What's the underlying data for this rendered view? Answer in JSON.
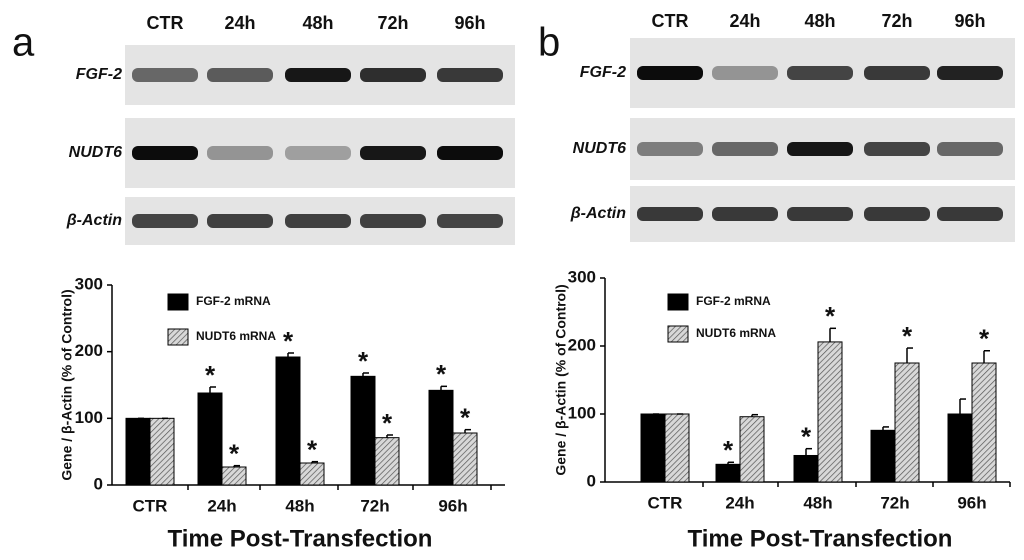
{
  "chart_data": [
    {
      "type": "bar",
      "panel": "a",
      "gel": {
        "lanes": [
          "CTR",
          "24h",
          "48h",
          "72h",
          "96h"
        ],
        "rows": [
          "FGF-2",
          "NUDT6",
          "β-Actin"
        ]
      },
      "categories": [
        "CTR",
        "24h",
        "48h",
        "72h",
        "96h"
      ],
      "series": [
        {
          "name": "FGF-2 mRNA",
          "color": "#000000",
          "values": [
            100,
            138,
            192,
            163,
            142
          ],
          "errors": [
            0,
            9,
            6,
            5,
            6
          ],
          "significance": [
            null,
            "*",
            "*",
            "*",
            "*"
          ]
        },
        {
          "name": "NUDT6 mRNA",
          "color": "#9a9a9a",
          "pattern": "hatch",
          "values": [
            100,
            27,
            33,
            71,
            78
          ],
          "errors": [
            0,
            2,
            2,
            4,
            5
          ],
          "significance": [
            null,
            "*",
            "*",
            "*",
            "*"
          ]
        }
      ],
      "y_label": "Gene / β-Actin (% of Control)",
      "x_label": "Time Post-Transfection",
      "ylim": [
        0,
        300
      ],
      "yticks": [
        0,
        100,
        200,
        300
      ]
    },
    {
      "type": "bar",
      "panel": "b",
      "gel": {
        "lanes": [
          "CTR",
          "24h",
          "48h",
          "72h",
          "96h"
        ],
        "rows": [
          "FGF-2",
          "NUDT6",
          "β-Actin"
        ]
      },
      "categories": [
        "CTR",
        "24h",
        "48h",
        "72h",
        "96h"
      ],
      "series": [
        {
          "name": "FGF-2 mRNA",
          "color": "#000000",
          "values": [
            100,
            26,
            39,
            76,
            100
          ],
          "errors": [
            0,
            3,
            10,
            5,
            22
          ],
          "significance": [
            null,
            "*",
            "*",
            null,
            null
          ]
        },
        {
          "name": "NUDT6 mRNA",
          "color": "#9a9a9a",
          "pattern": "hatch",
          "values": [
            100,
            96,
            206,
            175,
            175
          ],
          "errors": [
            0,
            3,
            20,
            22,
            18
          ],
          "significance": [
            null,
            null,
            "*",
            "*",
            "*"
          ]
        }
      ],
      "y_label": "Gene / β-Actin (% of Control)",
      "x_label": "Time Post-Transfection",
      "ylim": [
        0,
        300
      ],
      "yticks": [
        0,
        100,
        200,
        300
      ]
    }
  ]
}
